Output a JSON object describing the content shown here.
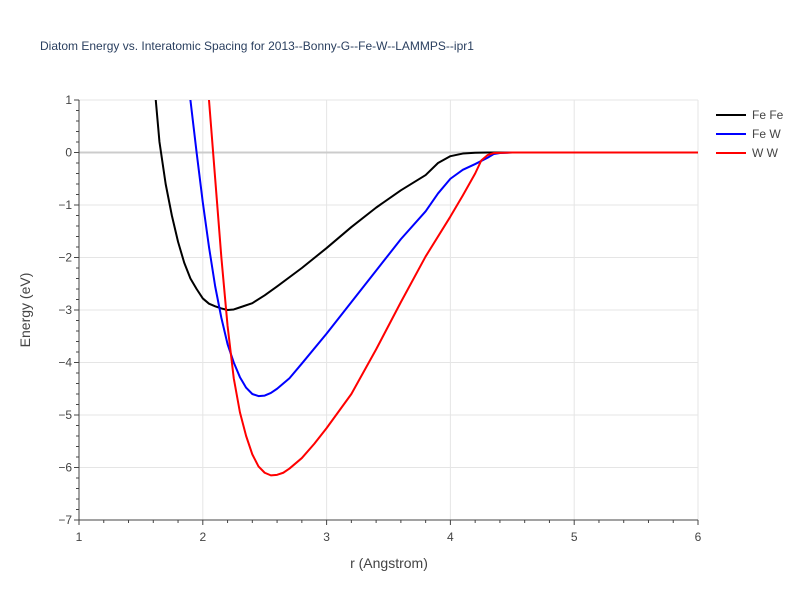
{
  "chart_data": {
    "type": "line",
    "title": "Diatom Energy vs. Interatomic Spacing for 2013--Bonny-G--Fe-W--LAMMPS--ipr1",
    "xlabel": "r (Angstrom)",
    "ylabel": "Energy (eV)",
    "xlim": [
      1,
      6
    ],
    "ylim": [
      -7,
      1
    ],
    "x_ticks": [
      "1",
      "2",
      "3",
      "4",
      "5",
      "6"
    ],
    "y_ticks": [
      "1",
      "0",
      "−1",
      "−2",
      "−3",
      "−4",
      "−5",
      "−6",
      "−7"
    ],
    "grid": true,
    "legend_position": "top-right",
    "series": [
      {
        "name": "Fe Fe",
        "color": "#000000",
        "points": [
          [
            1.62,
            1.0
          ],
          [
            1.65,
            0.2
          ],
          [
            1.7,
            -0.6
          ],
          [
            1.75,
            -1.2
          ],
          [
            1.8,
            -1.7
          ],
          [
            1.85,
            -2.1
          ],
          [
            1.9,
            -2.4
          ],
          [
            1.95,
            -2.6
          ],
          [
            2.0,
            -2.78
          ],
          [
            2.05,
            -2.88
          ],
          [
            2.1,
            -2.93
          ],
          [
            2.15,
            -2.97
          ],
          [
            2.2,
            -3.0
          ],
          [
            2.25,
            -2.99
          ],
          [
            2.3,
            -2.95
          ],
          [
            2.4,
            -2.87
          ],
          [
            2.5,
            -2.72
          ],
          [
            2.6,
            -2.55
          ],
          [
            2.8,
            -2.2
          ],
          [
            3.0,
            -1.82
          ],
          [
            3.2,
            -1.42
          ],
          [
            3.4,
            -1.05
          ],
          [
            3.6,
            -0.72
          ],
          [
            3.8,
            -0.43
          ],
          [
            3.9,
            -0.2
          ],
          [
            4.0,
            -0.07
          ],
          [
            4.1,
            -0.02
          ],
          [
            4.2,
            -0.005
          ],
          [
            4.3,
            0.0
          ],
          [
            5.0,
            0.0
          ],
          [
            6.0,
            0.0
          ]
        ]
      },
      {
        "name": "Fe W",
        "color": "#0000ff",
        "points": [
          [
            1.9,
            1.0
          ],
          [
            1.95,
            0.0
          ],
          [
            2.0,
            -0.95
          ],
          [
            2.05,
            -1.8
          ],
          [
            2.1,
            -2.55
          ],
          [
            2.15,
            -3.15
          ],
          [
            2.2,
            -3.65
          ],
          [
            2.25,
            -4.0
          ],
          [
            2.3,
            -4.28
          ],
          [
            2.35,
            -4.48
          ],
          [
            2.4,
            -4.6
          ],
          [
            2.45,
            -4.64
          ],
          [
            2.5,
            -4.63
          ],
          [
            2.55,
            -4.58
          ],
          [
            2.6,
            -4.5
          ],
          [
            2.7,
            -4.3
          ],
          [
            2.8,
            -4.02
          ],
          [
            3.0,
            -3.45
          ],
          [
            3.2,
            -2.85
          ],
          [
            3.4,
            -2.25
          ],
          [
            3.6,
            -1.65
          ],
          [
            3.8,
            -1.12
          ],
          [
            3.9,
            -0.78
          ],
          [
            4.0,
            -0.5
          ],
          [
            4.1,
            -0.33
          ],
          [
            4.2,
            -0.22
          ],
          [
            4.3,
            -0.1
          ],
          [
            4.35,
            -0.03
          ],
          [
            4.4,
            -0.01
          ],
          [
            4.5,
            0.0
          ],
          [
            5.0,
            0.0
          ],
          [
            6.0,
            0.0
          ]
        ]
      },
      {
        "name": "W W",
        "color": "#ff0000",
        "points": [
          [
            2.05,
            1.0
          ],
          [
            2.1,
            -0.5
          ],
          [
            2.15,
            -2.0
          ],
          [
            2.2,
            -3.3
          ],
          [
            2.25,
            -4.3
          ],
          [
            2.3,
            -4.95
          ],
          [
            2.35,
            -5.4
          ],
          [
            2.4,
            -5.75
          ],
          [
            2.45,
            -5.98
          ],
          [
            2.5,
            -6.1
          ],
          [
            2.55,
            -6.15
          ],
          [
            2.6,
            -6.14
          ],
          [
            2.65,
            -6.1
          ],
          [
            2.7,
            -6.02
          ],
          [
            2.8,
            -5.82
          ],
          [
            2.9,
            -5.55
          ],
          [
            3.0,
            -5.25
          ],
          [
            3.2,
            -4.6
          ],
          [
            3.4,
            -3.75
          ],
          [
            3.6,
            -2.85
          ],
          [
            3.8,
            -1.98
          ],
          [
            4.0,
            -1.22
          ],
          [
            4.1,
            -0.82
          ],
          [
            4.2,
            -0.4
          ],
          [
            4.25,
            -0.15
          ],
          [
            4.3,
            -0.05
          ],
          [
            4.35,
            -0.01
          ],
          [
            4.5,
            0.0
          ],
          [
            5.0,
            0.0
          ],
          [
            6.0,
            0.0
          ]
        ]
      }
    ]
  }
}
